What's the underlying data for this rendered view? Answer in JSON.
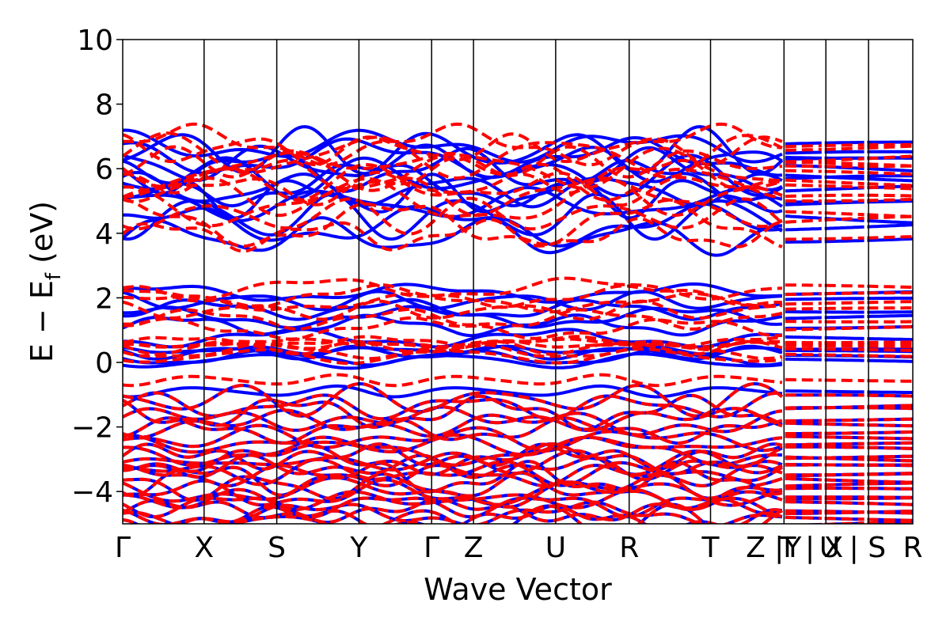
{
  "chart_data": {
    "type": "line",
    "xlabel": "Wave Vector",
    "ylabel": {
      "main": "E − E",
      "sub": "f",
      "unit": " (eV)"
    },
    "ylim": [
      -5,
      10
    ],
    "yticks": [
      -4,
      -2,
      0,
      2,
      4,
      6,
      8,
      10
    ],
    "ytick_labels": [
      "−4",
      "−2",
      "0",
      "2",
      "4",
      "6",
      "8",
      "10"
    ],
    "xlim": [
      0,
      1
    ],
    "kpath_fractions": [
      0,
      0.103,
      0.195,
      0.299,
      0.391,
      0.444,
      0.548,
      0.641,
      0.744,
      0.837,
      0.89,
      0.944,
      1.0
    ],
    "xtick_labels": [
      "Γ",
      "X",
      "S",
      "Y",
      "Γ",
      "Z",
      "U",
      "R",
      "T",
      "Z |Y",
      "T | X",
      "U | S",
      "R"
    ],
    "grid": false,
    "series": [
      {
        "style": "dashed",
        "color": "#ff0000",
        "bands": {
          "core": [
            -4.95,
            -4.85,
            -4.7,
            -4.6,
            -4.4,
            -4.25,
            -4.1,
            -4.0,
            -3.85,
            -3.6,
            -3.5,
            -3.4,
            -3.25,
            -3.1,
            -3.0,
            -2.9,
            -2.75,
            -2.55,
            -2.35,
            -2.1,
            -1.9,
            -1.75,
            -1.55,
            -1.35,
            -1.15
          ],
          "valence": [
            -0.55,
            0.2,
            0.35,
            0.45,
            0.55,
            0.6,
            0.65
          ],
          "conduction_low": [
            1.05,
            1.35,
            1.6,
            1.85,
            2.05,
            2.3
          ],
          "upper": [
            3.95,
            4.3,
            4.55,
            4.95,
            5.2,
            5.4,
            5.6,
            5.8,
            6.0,
            6.2,
            6.4,
            6.6,
            6.75
          ]
        }
      },
      {
        "style": "solid",
        "color": "#0000ff",
        "bands": {
          "core": [
            -4.95,
            -4.85,
            -4.7,
            -4.6,
            -4.4,
            -4.25,
            -4.1,
            -4.0,
            -3.85,
            -3.6,
            -3.5,
            -3.4,
            -3.25,
            -3.1,
            -3.0,
            -2.9,
            -2.75,
            -2.55,
            -2.35,
            -2.1,
            -1.9,
            -1.75,
            -1.55,
            -1.35,
            -1.15
          ],
          "valence": [
            -0.9,
            0.05,
            0.15,
            0.3,
            0.38
          ],
          "conduction_low": [
            0.75,
            1.15,
            1.4,
            1.65,
            1.9,
            2.15
          ],
          "upper": [
            3.9,
            4.25,
            4.5,
            4.9,
            5.15,
            5.35,
            5.55,
            5.75,
            5.95,
            6.15,
            6.35,
            6.55,
            6.7
          ]
        }
      }
    ]
  }
}
